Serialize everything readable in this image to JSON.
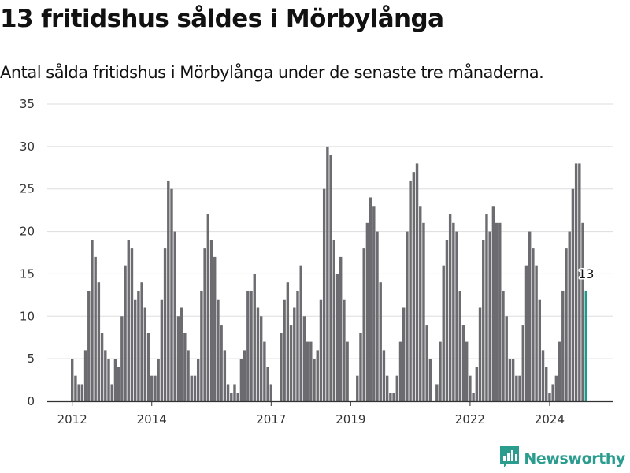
{
  "title": "13 fritidshus såldes i Mörbylånga",
  "subtitle": "Antal sålda fritidshus i Mörbylånga under de senaste tre månaderna.",
  "brand": {
    "name": "Newsworthy",
    "icon": "newsworthy-logo-icon",
    "color": "#2a9d8f"
  },
  "colors": {
    "bar": "#6b6b70",
    "highlight": "#1f9a8a",
    "grid": "#dddddd",
    "axis": "#333333"
  },
  "chart_data": {
    "type": "bar",
    "title": "13 fritidshus såldes i Mörbylånga",
    "subtitle": "Antal sålda fritidshus i Mörbylånga under de senaste tre månaderna.",
    "xlabel": "",
    "ylabel": "",
    "ylim": [
      0,
      35
    ],
    "yticks": [
      0,
      5,
      10,
      15,
      20,
      25,
      30,
      35
    ],
    "xtick_labels": [
      {
        "label": "2012",
        "index": 0
      },
      {
        "label": "2014",
        "index": 24
      },
      {
        "label": "2017",
        "index": 60
      },
      {
        "label": "2019",
        "index": 84
      },
      {
        "label": "2022",
        "index": 120
      },
      {
        "label": "2024",
        "index": 144
      }
    ],
    "grid": true,
    "highlight_last": true,
    "annotation": {
      "text": "13",
      "index": 155
    },
    "categories": [
      "2012-01",
      "2012-02",
      "2012-03",
      "2012-04",
      "2012-05",
      "2012-06",
      "2012-07",
      "2012-08",
      "2012-09",
      "2012-10",
      "2012-11",
      "2012-12",
      "2013-01",
      "2013-02",
      "2013-03",
      "2013-04",
      "2013-05",
      "2013-06",
      "2013-07",
      "2013-08",
      "2013-09",
      "2013-10",
      "2013-11",
      "2013-12",
      "2014-01",
      "2014-02",
      "2014-03",
      "2014-04",
      "2014-05",
      "2014-06",
      "2014-07",
      "2014-08",
      "2014-09",
      "2014-10",
      "2014-11",
      "2014-12",
      "2015-01",
      "2015-02",
      "2015-03",
      "2015-04",
      "2015-05",
      "2015-06",
      "2015-07",
      "2015-08",
      "2015-09",
      "2015-10",
      "2015-11",
      "2015-12",
      "2016-01",
      "2016-02",
      "2016-03",
      "2016-04",
      "2016-05",
      "2016-06",
      "2016-07",
      "2016-08",
      "2016-09",
      "2016-10",
      "2016-11",
      "2016-12",
      "2017-01",
      "2017-02",
      "2017-03",
      "2017-04",
      "2017-05",
      "2017-06",
      "2017-07",
      "2017-08",
      "2017-09",
      "2017-10",
      "2017-11",
      "2017-12",
      "2018-01",
      "2018-02",
      "2018-03",
      "2018-04",
      "2018-05",
      "2018-06",
      "2018-07",
      "2018-08",
      "2018-09",
      "2018-10",
      "2018-11",
      "2018-12",
      "2019-01",
      "2019-02",
      "2019-03",
      "2019-04",
      "2019-05",
      "2019-06",
      "2019-07",
      "2019-08",
      "2019-09",
      "2019-10",
      "2019-11",
      "2019-12",
      "2020-01",
      "2020-02",
      "2020-03",
      "2020-04",
      "2020-05",
      "2020-06",
      "2020-07",
      "2020-08",
      "2020-09",
      "2020-10",
      "2020-11",
      "2020-12",
      "2021-01",
      "2021-02",
      "2021-03",
      "2021-04",
      "2021-05",
      "2021-06",
      "2021-07",
      "2021-08",
      "2021-09",
      "2021-10",
      "2021-11",
      "2021-12",
      "2022-01",
      "2022-02",
      "2022-03",
      "2022-04",
      "2022-05",
      "2022-06",
      "2022-07",
      "2022-08",
      "2022-09",
      "2022-10",
      "2022-11",
      "2022-12",
      "2023-01",
      "2023-02",
      "2023-03",
      "2023-04",
      "2023-05",
      "2023-06",
      "2023-07",
      "2023-08",
      "2023-09",
      "2023-10",
      "2023-11",
      "2023-12",
      "2024-01",
      "2024-02",
      "2024-03",
      "2024-04",
      "2024-05",
      "2024-06",
      "2024-07",
      "2024-08",
      "2024-09",
      "2024-10",
      "2024-11",
      "2024-12"
    ],
    "values": [
      5,
      3,
      2,
      2,
      6,
      13,
      19,
      17,
      14,
      8,
      6,
      5,
      2,
      5,
      4,
      10,
      16,
      19,
      18,
      12,
      13,
      14,
      11,
      8,
      3,
      3,
      5,
      12,
      18,
      26,
      25,
      20,
      10,
      11,
      8,
      6,
      3,
      3,
      5,
      13,
      18,
      22,
      19,
      17,
      12,
      9,
      6,
      2,
      1,
      2,
      1,
      5,
      6,
      13,
      13,
      15,
      11,
      10,
      7,
      4,
      2,
      0,
      0,
      8,
      12,
      14,
      9,
      11,
      13,
      16,
      10,
      7,
      7,
      5,
      6,
      12,
      25,
      30,
      29,
      19,
      15,
      17,
      12,
      7,
      0,
      0,
      3,
      8,
      18,
      21,
      24,
      23,
      20,
      14,
      6,
      3,
      1,
      1,
      3,
      7,
      11,
      20,
      26,
      27,
      28,
      23,
      21,
      9,
      5,
      0,
      2,
      7,
      16,
      19,
      22,
      21,
      20,
      13,
      9,
      7,
      3,
      1,
      4,
      11,
      19,
      22,
      20,
      23,
      21,
      21,
      13,
      10,
      5,
      5,
      3,
      3,
      9,
      16,
      20,
      18,
      16,
      12,
      6,
      4,
      1,
      2,
      3,
      7,
      13,
      18,
      20,
      25,
      28,
      28,
      21,
      13
    ]
  }
}
